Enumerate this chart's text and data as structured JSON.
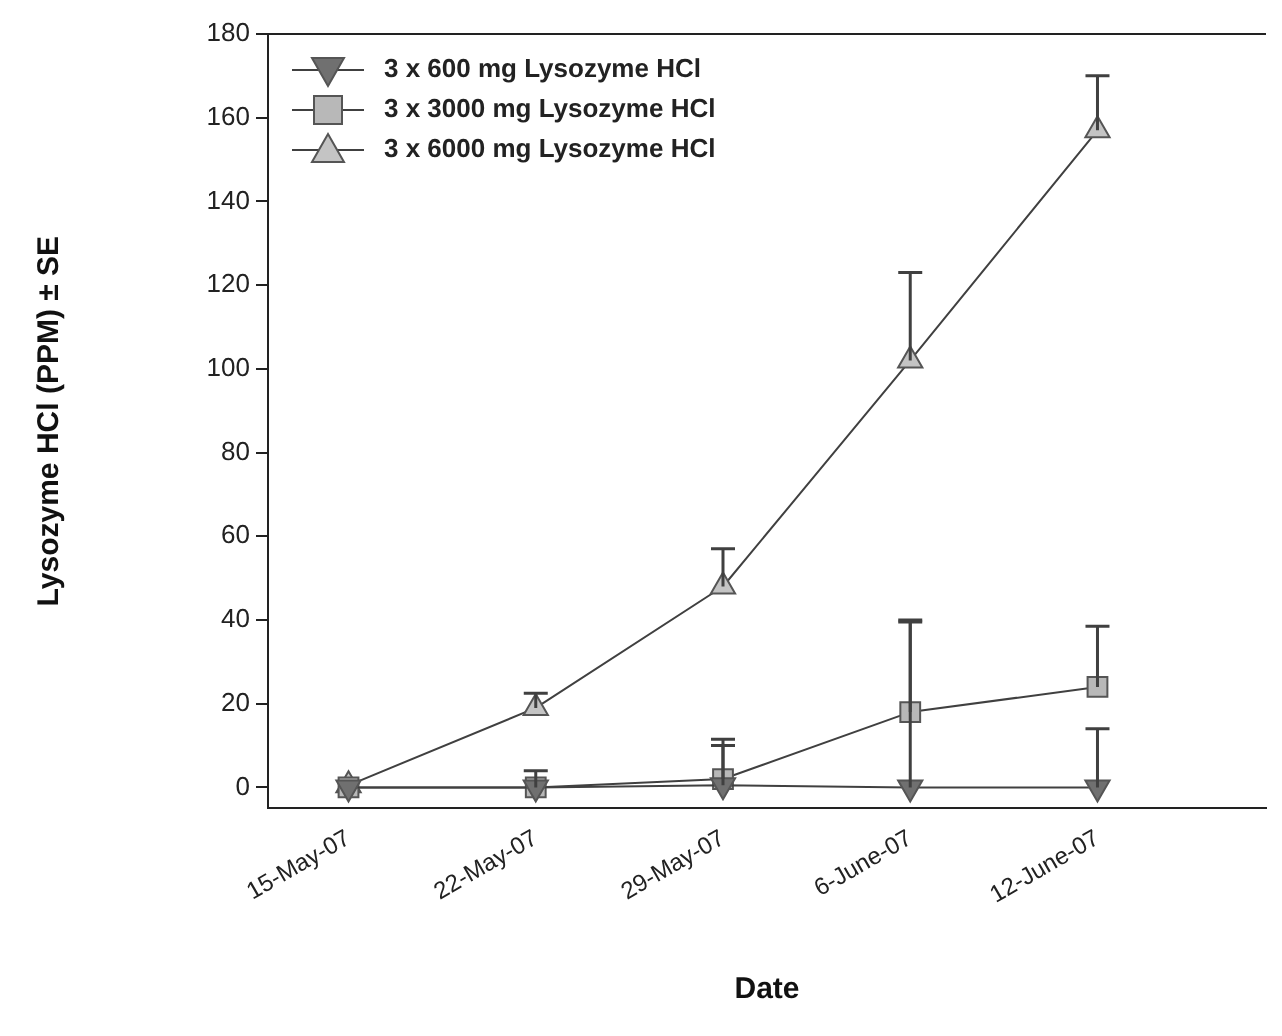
{
  "chart_data": {
    "type": "line",
    "xlabel": "Date",
    "ylabel": "Lysozyme HCl (PPM) ± SE",
    "categories": [
      "15-May-07",
      "22-May-07",
      "29-May-07",
      "6-June-07",
      "12-June-07"
    ],
    "ylim": [
      -5,
      180
    ],
    "yticks": [
      0,
      20,
      40,
      60,
      80,
      100,
      120,
      140,
      160,
      180
    ],
    "grid": false,
    "legend": "top left",
    "series": [
      {
        "name": "3 x 600 mg Lysozyme HCl",
        "color": "#707070",
        "marker": "triangle-down",
        "values": [
          0,
          0,
          0.5,
          0,
          0
        ],
        "errors": [
          null,
          null,
          [
            0.5,
            10
          ],
          [
            0,
            39.5
          ],
          [
            0,
            14
          ]
        ]
      },
      {
        "name": "3 x 3000 mg Lysozyme HCl",
        "color": "#b8b8b8",
        "marker": "square",
        "values": [
          0,
          0,
          2,
          18,
          24
        ],
        "errors": [
          null,
          [
            0,
            4
          ],
          [
            2,
            11.5
          ],
          [
            18,
            40
          ],
          [
            24,
            38.5
          ]
        ]
      },
      {
        "name": "3 x 6000 mg Lysozyme HCl",
        "color": "#c4c4c4",
        "marker": "triangle",
        "values": [
          0.5,
          19,
          48,
          102,
          157
        ],
        "errors": [
          null,
          [
            19,
            22.5
          ],
          [
            48,
            57
          ],
          [
            102,
            123
          ],
          [
            157,
            170
          ]
        ]
      }
    ]
  }
}
